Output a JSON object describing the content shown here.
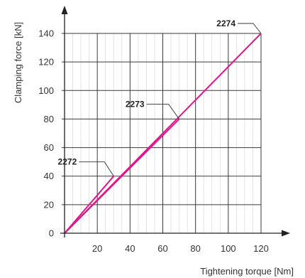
{
  "chart_data": {
    "type": "line",
    "xlabel": "Tightening torque [Nm]",
    "ylabel": "Clamping force [kN]",
    "xlim": [
      0,
      120
    ],
    "ylim": [
      0,
      140
    ],
    "x_ticks": [
      20,
      40,
      60,
      80,
      100,
      120
    ],
    "y_ticks": [
      0,
      20,
      40,
      60,
      80,
      100,
      120,
      140
    ],
    "grid": true,
    "minor_x_gridlines": true,
    "line_color": "#e0168c",
    "series": [
      {
        "name": "2272",
        "x": [
          0,
          30
        ],
        "y": [
          0,
          40
        ]
      },
      {
        "name": "2273",
        "x": [
          0,
          70
        ],
        "y": [
          0,
          80
        ]
      },
      {
        "name": "2274",
        "x": [
          0,
          120
        ],
        "y": [
          0,
          140
        ]
      }
    ]
  }
}
